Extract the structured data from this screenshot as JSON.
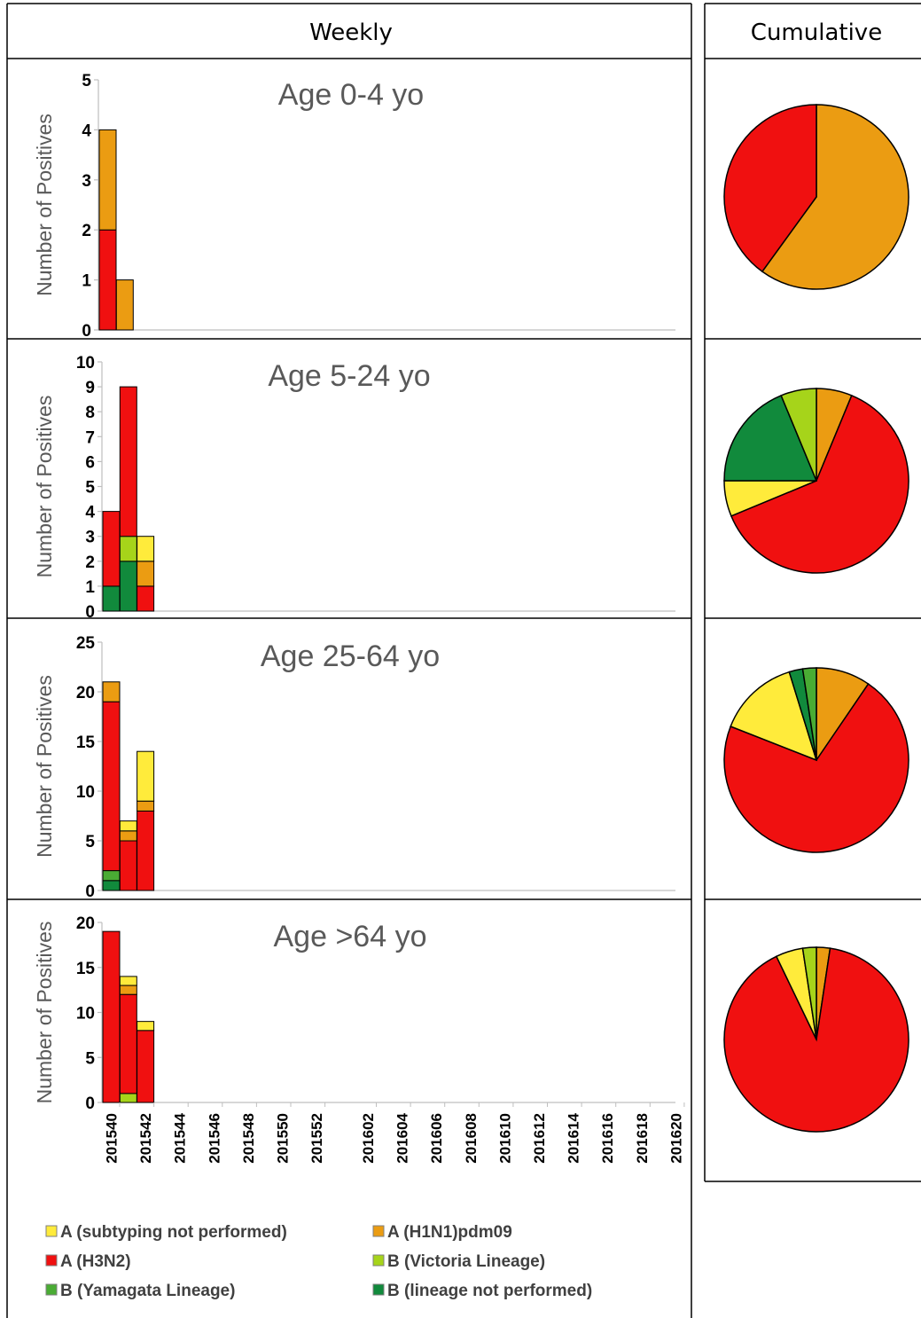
{
  "header": {
    "weekly": "Weekly",
    "cumulative": "Cumulative"
  },
  "colors": {
    "A (subtyping not performed)": "#ffeb3b",
    "A (H1N1)pdm09": "#eb9c12",
    "A (H3N2)": "#f01010",
    "B (Victoria Lineage)": "#a6d41a",
    "B (Yamagata Lineage)": "#4aac34",
    "B (lineage not performed)": "#118a3c"
  },
  "chart_data": {
    "type": "bar",
    "stacked": true,
    "ylabel": "Number of Positives",
    "x_ticks": [
      "201540",
      "201542",
      "201544",
      "201546",
      "201548",
      "201550",
      "201552",
      "201602",
      "201604",
      "201606",
      "201608",
      "201610",
      "201612",
      "201614",
      "201616",
      "201618",
      "201620"
    ],
    "legend": [
      "A (subtyping not performed)",
      "A (H1N1)pdm09",
      "A (H3N2)",
      "B (Victoria Lineage)",
      "B (Yamagata Lineage)",
      "B (lineage not performed)"
    ],
    "panels": [
      {
        "title": "Age 0-4 yo",
        "ylim": [
          0,
          5
        ],
        "yticks": [
          0,
          1,
          2,
          3,
          4,
          5
        ],
        "weeks": [
          "201540",
          "201541"
        ],
        "series": [
          {
            "name": "B (lineage not performed)",
            "values": [
              0,
              0
            ]
          },
          {
            "name": "B (Yamagata Lineage)",
            "values": [
              0,
              0
            ]
          },
          {
            "name": "B (Victoria Lineage)",
            "values": [
              0,
              0
            ]
          },
          {
            "name": "A (H3N2)",
            "values": [
              2,
              0
            ]
          },
          {
            "name": "A (H1N1)pdm09",
            "values": [
              2,
              1
            ]
          },
          {
            "name": "A (subtyping not performed)",
            "values": [
              0,
              0
            ]
          }
        ]
      },
      {
        "title": "Age 5-24 yo",
        "ylim": [
          0,
          10
        ],
        "yticks": [
          0,
          1,
          2,
          3,
          4,
          5,
          6,
          7,
          8,
          9,
          10
        ],
        "weeks": [
          "201540",
          "201541",
          "201542"
        ],
        "series": [
          {
            "name": "B (lineage not performed)",
            "values": [
              1,
              2,
              0
            ]
          },
          {
            "name": "B (Yamagata Lineage)",
            "values": [
              0,
              0,
              0
            ]
          },
          {
            "name": "B (Victoria Lineage)",
            "values": [
              0,
              1,
              0
            ]
          },
          {
            "name": "A (H3N2)",
            "values": [
              3,
              6,
              1
            ]
          },
          {
            "name": "A (H1N1)pdm09",
            "values": [
              0,
              0,
              1
            ]
          },
          {
            "name": "A (subtyping not performed)",
            "values": [
              0,
              0,
              1
            ]
          }
        ]
      },
      {
        "title": "Age 25-64 yo",
        "ylim": [
          0,
          25
        ],
        "yticks": [
          0,
          5,
          10,
          15,
          20,
          25
        ],
        "weeks": [
          "201540",
          "201541",
          "201542"
        ],
        "series": [
          {
            "name": "B (lineage not performed)",
            "values": [
              1,
              0,
              0
            ]
          },
          {
            "name": "B (Yamagata Lineage)",
            "values": [
              1,
              0,
              0
            ]
          },
          {
            "name": "B (Victoria Lineage)",
            "values": [
              0,
              0,
              0
            ]
          },
          {
            "name": "A (H3N2)",
            "values": [
              17,
              5,
              8
            ]
          },
          {
            "name": "A (H1N1)pdm09",
            "values": [
              2,
              1,
              1
            ]
          },
          {
            "name": "A (subtyping not performed)",
            "values": [
              0,
              1,
              5
            ]
          }
        ]
      },
      {
        "title": "Age >64 yo",
        "ylim": [
          0,
          20
        ],
        "yticks": [
          0,
          5,
          10,
          15,
          20
        ],
        "weeks": [
          "201540",
          "201541",
          "201542"
        ],
        "series": [
          {
            "name": "B (lineage not performed)",
            "values": [
              0,
              0,
              0
            ]
          },
          {
            "name": "B (Yamagata Lineage)",
            "values": [
              0,
              0,
              0
            ]
          },
          {
            "name": "B (Victoria Lineage)",
            "values": [
              0,
              1,
              0
            ]
          },
          {
            "name": "A (H3N2)",
            "values": [
              19,
              11,
              8
            ]
          },
          {
            "name": "A (H1N1)pdm09",
            "values": [
              0,
              1,
              0
            ]
          },
          {
            "name": "A (subtyping not performed)",
            "values": [
              0,
              1,
              1
            ]
          }
        ]
      }
    ],
    "pies": [
      {
        "slices": [
          {
            "name": "A (H1N1)pdm09",
            "value": 3
          },
          {
            "name": "A (H3N2)",
            "value": 2
          }
        ]
      },
      {
        "slices": [
          {
            "name": "A (H1N1)pdm09",
            "value": 1
          },
          {
            "name": "A (H3N2)",
            "value": 10
          },
          {
            "name": "A (subtyping not performed)",
            "value": 1
          },
          {
            "name": "B (lineage not performed)",
            "value": 3
          },
          {
            "name": "B (Victoria Lineage)",
            "value": 1
          }
        ]
      },
      {
        "slices": [
          {
            "name": "A (H1N1)pdm09",
            "value": 4
          },
          {
            "name": "A (H3N2)",
            "value": 30
          },
          {
            "name": "A (subtyping not performed)",
            "value": 6
          },
          {
            "name": "B (lineage not performed)",
            "value": 1
          },
          {
            "name": "B (Yamagata Lineage)",
            "value": 1
          }
        ]
      },
      {
        "slices": [
          {
            "name": "A (H1N1)pdm09",
            "value": 1
          },
          {
            "name": "A (H3N2)",
            "value": 38
          },
          {
            "name": "A (subtyping not performed)",
            "value": 2
          },
          {
            "name": "B (Victoria Lineage)",
            "value": 1
          }
        ]
      }
    ]
  }
}
